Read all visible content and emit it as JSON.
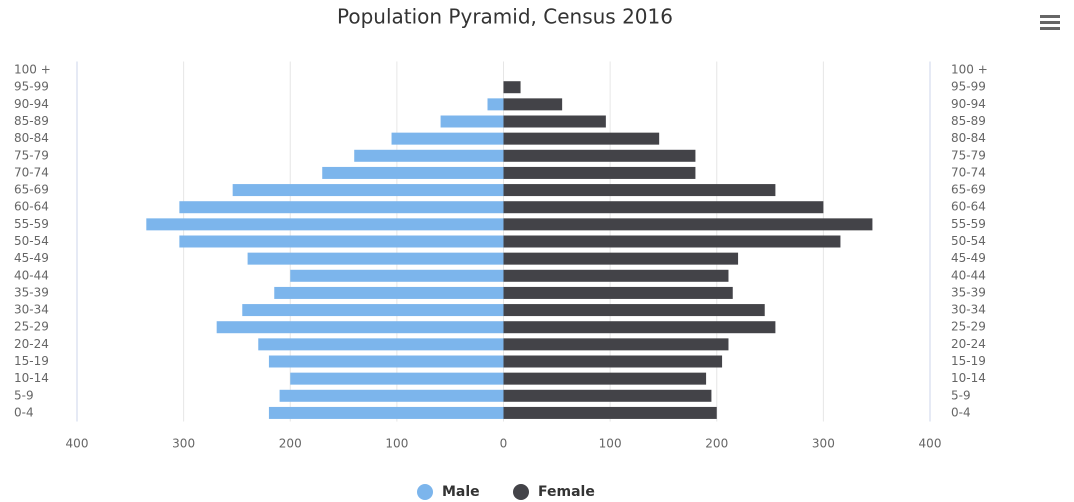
{
  "chart_data": {
    "type": "pyramid",
    "title": "Population Pyramid, Census 2016",
    "categories": [
      "100 +",
      "95-99",
      "90-94",
      "85-89",
      "80-84",
      "75-79",
      "70-74",
      "65-69",
      "60-64",
      "55-59",
      "50-54",
      "45-49",
      "40-44",
      "35-39",
      "30-34",
      "25-29",
      "20-24",
      "15-19",
      "10-14",
      "5-9",
      "0-4"
    ],
    "series": [
      {
        "name": "Male",
        "color": "#7cb5ec",
        "values": [
          0,
          0,
          -15,
          -59,
          -105,
          -140,
          -170,
          -254,
          -304,
          -335,
          -304,
          -240,
          -200,
          -215,
          -245,
          -269,
          -230,
          -220,
          -200,
          -210,
          -220
        ]
      },
      {
        "name": "Female",
        "color": "#434348",
        "values": [
          0,
          16,
          55,
          96,
          146,
          180,
          180,
          255,
          300,
          346,
          316,
          220,
          211,
          215,
          245,
          255,
          211,
          205,
          190,
          195,
          200
        ]
      }
    ],
    "xlim": [
      -400,
      400
    ],
    "xticks": [
      {
        "value": -400,
        "label": "400"
      },
      {
        "value": -300,
        "label": "300"
      },
      {
        "value": -200,
        "label": "200"
      },
      {
        "value": -100,
        "label": "100"
      },
      0,
      100,
      200,
      300,
      400
    ],
    "grid": true,
    "legend": "bottom"
  }
}
